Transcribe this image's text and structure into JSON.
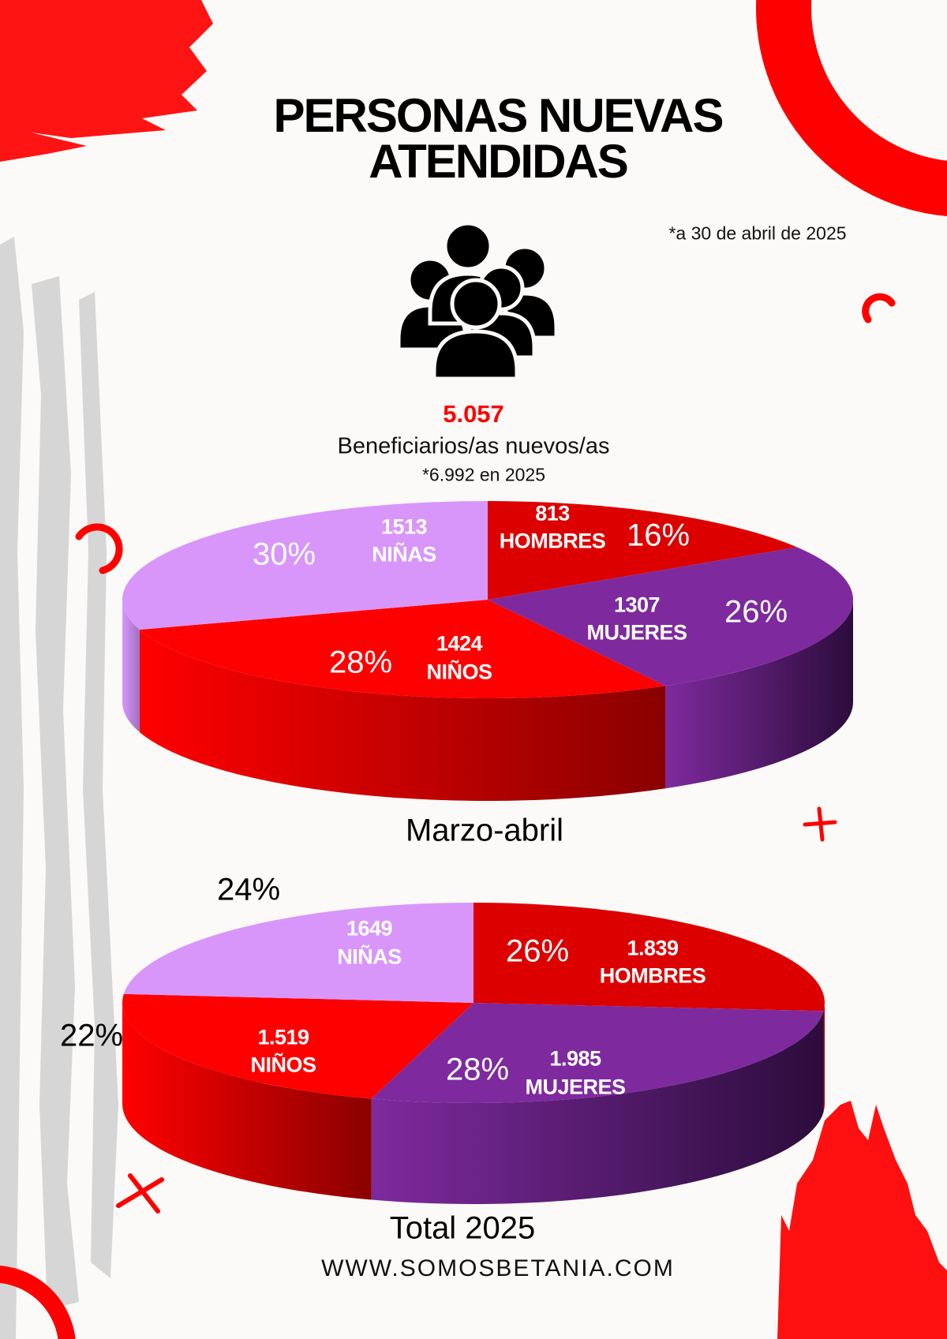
{
  "header": {
    "title_line1": "PERSONAS NUEVAS",
    "title_line2": "ATENDIDAS",
    "date_note": "*a 30 de abril de 2025"
  },
  "summary": {
    "icon": "people-group-icon",
    "total": "5.057",
    "label": "Beneficiarios/as nuevos/as",
    "year_note": "*6.992 en 2025"
  },
  "colors": {
    "hombres": "#dc0000",
    "mujeres": "#7e2a9e",
    "ninos": "#ff0000",
    "ninas": "#d896fb",
    "accent": "#ff1010"
  },
  "chart_data": [
    {
      "type": "pie",
      "title": "Marzo-abril",
      "categories": [
        "HOMBRES",
        "MUJERES",
        "NIÑOS",
        "NIÑAS"
      ],
      "values": [
        813,
        1307,
        1424,
        1513
      ],
      "value_labels": [
        "813",
        "1307",
        "1424",
        "1513"
      ],
      "percent_labels": [
        "16%",
        "26%",
        "28%",
        "30%"
      ],
      "percents": [
        16,
        26,
        28,
        30
      ]
    },
    {
      "type": "pie",
      "title": "Total 2025",
      "categories": [
        "HOMBRES",
        "MUJERES",
        "NIÑOS",
        "NIÑAS"
      ],
      "values": [
        1839,
        1985,
        1519,
        1649
      ],
      "value_labels": [
        "1.839",
        "1.985",
        "1.519",
        "1649"
      ],
      "percent_labels": [
        "26%",
        "28%",
        "22%",
        "24%"
      ],
      "percents": [
        26,
        28,
        22,
        24
      ]
    }
  ],
  "footer": {
    "url": "WWW.SOMOSBETANIA.COM"
  }
}
